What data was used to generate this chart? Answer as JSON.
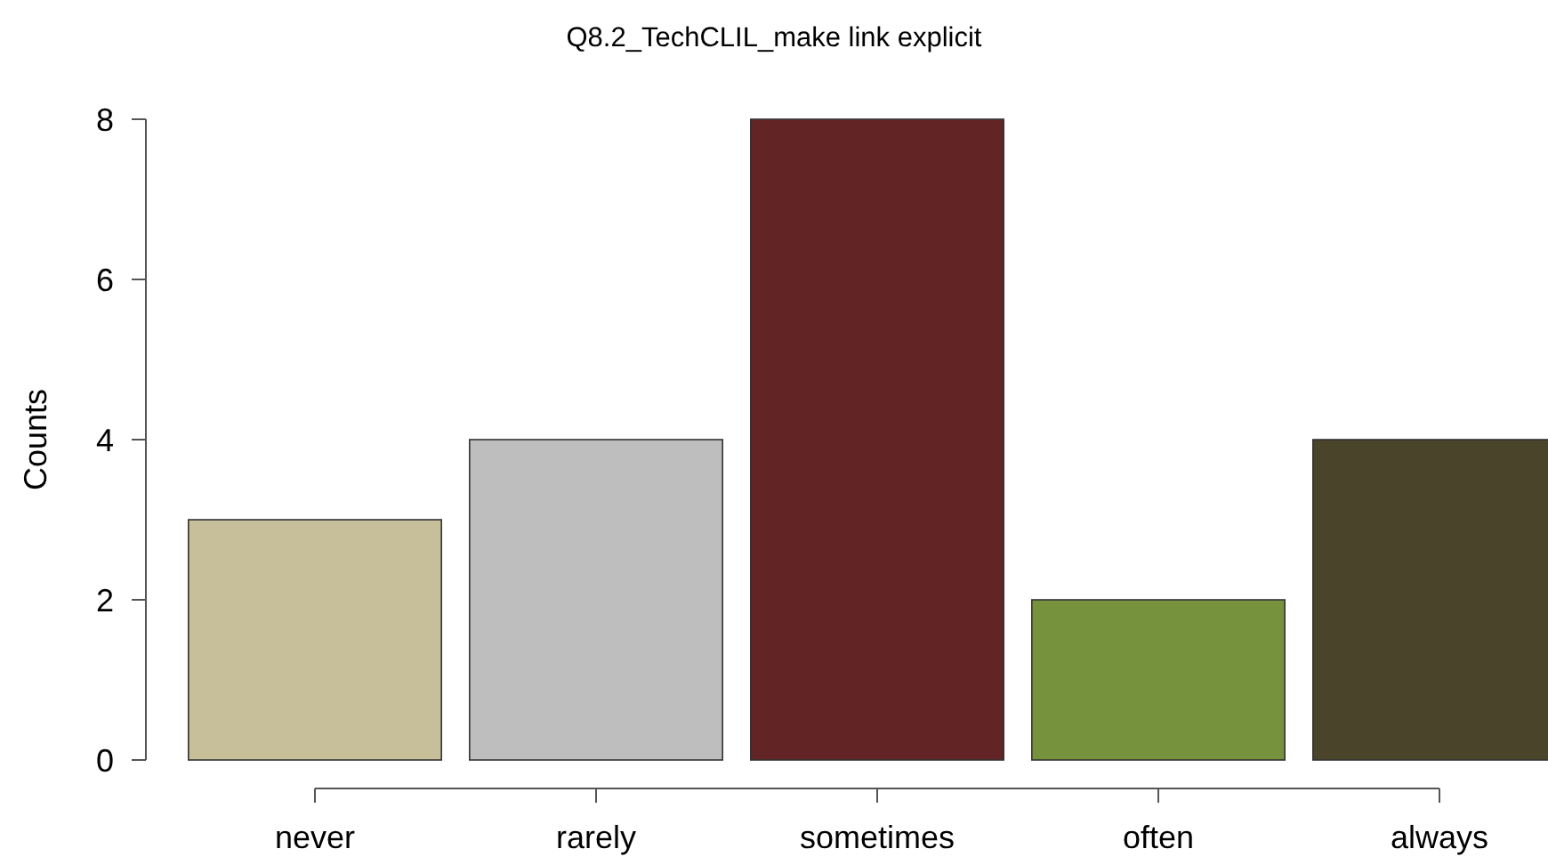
{
  "chart_data": {
    "type": "bar",
    "title": "Q8.2_TechCLIL_make link explicit",
    "ylabel": "Counts",
    "categories": [
      "never",
      "rarely",
      "sometimes",
      "often",
      "always"
    ],
    "values": [
      3,
      4,
      8,
      2,
      4
    ],
    "colors": [
      "#c6bf99",
      "#bebebe",
      "#632425",
      "#76923c",
      "#4a452a"
    ],
    "ylim": [
      0,
      8
    ],
    "yticks": [
      0,
      2,
      4,
      6,
      8
    ],
    "grid": false
  }
}
